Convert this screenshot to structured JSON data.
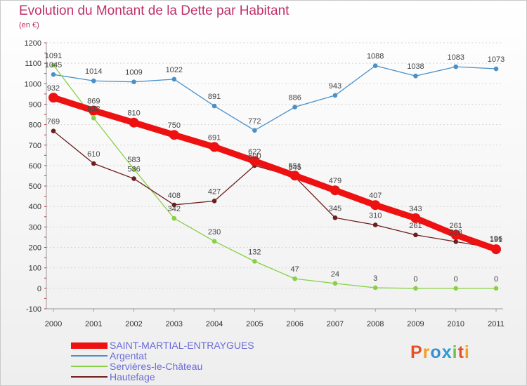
{
  "title": "Evolution du Montant de la Dette par Habitant",
  "subtitle": "(en €)",
  "logo": {
    "text": "Proxiti",
    "colors": [
      "#e8502a",
      "#f0a020",
      "#3a8ed0",
      "#2a9bd6",
      "#6cc24a",
      "#e8502a",
      "#f0a020"
    ]
  },
  "chart_data": {
    "type": "line",
    "x": [
      "2000",
      "2001",
      "2002",
      "2003",
      "2004",
      "2005",
      "2006",
      "2007",
      "2008",
      "2009",
      "2010",
      "2011"
    ],
    "y_ticks": [
      "1200",
      "1100",
      "1000",
      "900",
      "800",
      "700",
      "600",
      "500",
      "400",
      "300",
      "200",
      "100",
      "0",
      "-100"
    ],
    "ylim": [
      -100,
      1200
    ],
    "grid": "horizontal dashed",
    "series": [
      {
        "name": "SAINT-MARTIAL-ENTRAYGUES",
        "color": "#ee1111",
        "values": [
          932,
          869,
          810,
          750,
          691,
          622,
          551,
          479,
          407,
          343,
          261,
          191
        ],
        "labels": [
          "932",
          "869",
          "810",
          "750",
          "691",
          "622",
          "551",
          "479",
          "407",
          "343",
          "261",
          "191"
        ]
      },
      {
        "name": "Argentat",
        "color": "#4a90c8",
        "values": [
          1045,
          1014,
          1009,
          1022,
          891,
          772,
          886,
          943,
          1088,
          1038,
          1083,
          1073
        ],
        "labels": [
          "1045",
          "1014",
          "1009",
          "1022",
          "891",
          "772",
          "886",
          "943",
          "1088",
          "1038",
          "1083",
          "1073"
        ]
      },
      {
        "name": "Servières-le-Château",
        "color": "#88d044",
        "values": [
          1091,
          832,
          583,
          342,
          230,
          132,
          47,
          24,
          3,
          0,
          0,
          0
        ],
        "labels": [
          "1091",
          "832",
          "583",
          "342",
          "230",
          "132",
          "47",
          "24",
          "3",
          "0",
          "0",
          "0"
        ]
      },
      {
        "name": "Hautefage",
        "color": "#6e1e1e",
        "values": [
          769,
          610,
          536,
          408,
          427,
          600,
          545,
          345,
          310,
          261,
          228,
          196
        ],
        "labels": [
          "769",
          "610",
          "536",
          "408",
          "427",
          "600",
          "545",
          "345",
          "310",
          "261",
          "228",
          "196"
        ]
      }
    ]
  }
}
